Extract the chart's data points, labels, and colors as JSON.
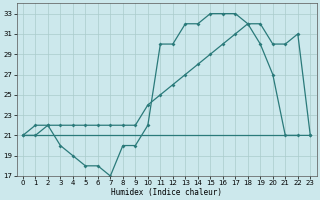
{
  "c1x": [
    0,
    1,
    2,
    3,
    4,
    5,
    6,
    7,
    8,
    9,
    10,
    11,
    12,
    13,
    14,
    15,
    16,
    17,
    18,
    19,
    20,
    21,
    22,
    23
  ],
  "c1y": [
    21,
    22,
    22,
    20,
    19,
    18,
    18,
    17,
    20,
    20,
    22,
    30,
    30,
    32,
    32,
    33,
    33,
    33,
    32,
    30,
    27,
    21,
    21,
    21
  ],
  "c2x": [
    0,
    1,
    2,
    3,
    4,
    5,
    6,
    7,
    8,
    9,
    10,
    11,
    12,
    13,
    14,
    15,
    16,
    17,
    18,
    19,
    20,
    21,
    22,
    23
  ],
  "c2y": [
    21,
    21,
    22,
    22,
    22,
    22,
    22,
    22,
    22,
    22,
    24,
    25,
    26,
    27,
    28,
    29,
    30,
    31,
    32,
    32,
    30,
    30,
    31,
    21
  ],
  "c3x": [
    0,
    1,
    2,
    3,
    4,
    5,
    6,
    7,
    8,
    9,
    10,
    11,
    12,
    13,
    14,
    15,
    16,
    17,
    18,
    19,
    20,
    21,
    22
  ],
  "c3y": [
    21,
    21,
    21,
    21,
    21,
    21,
    21,
    21,
    21,
    21,
    21,
    21,
    21,
    21,
    21,
    21,
    21,
    21,
    21,
    21,
    21,
    21,
    21
  ],
  "xlabel": "Humidex (Indice chaleur)",
  "ylim": [
    17,
    34
  ],
  "xlim": [
    -0.5,
    23.5
  ],
  "yticks": [
    17,
    19,
    21,
    23,
    25,
    27,
    29,
    31,
    33
  ],
  "xticks": [
    0,
    1,
    2,
    3,
    4,
    5,
    6,
    7,
    8,
    9,
    10,
    11,
    12,
    13,
    14,
    15,
    16,
    17,
    18,
    19,
    20,
    21,
    22,
    23
  ],
  "line_color": "#2a7a7a",
  "bg_color": "#cce8ec",
  "grid_color": "#aacccc"
}
